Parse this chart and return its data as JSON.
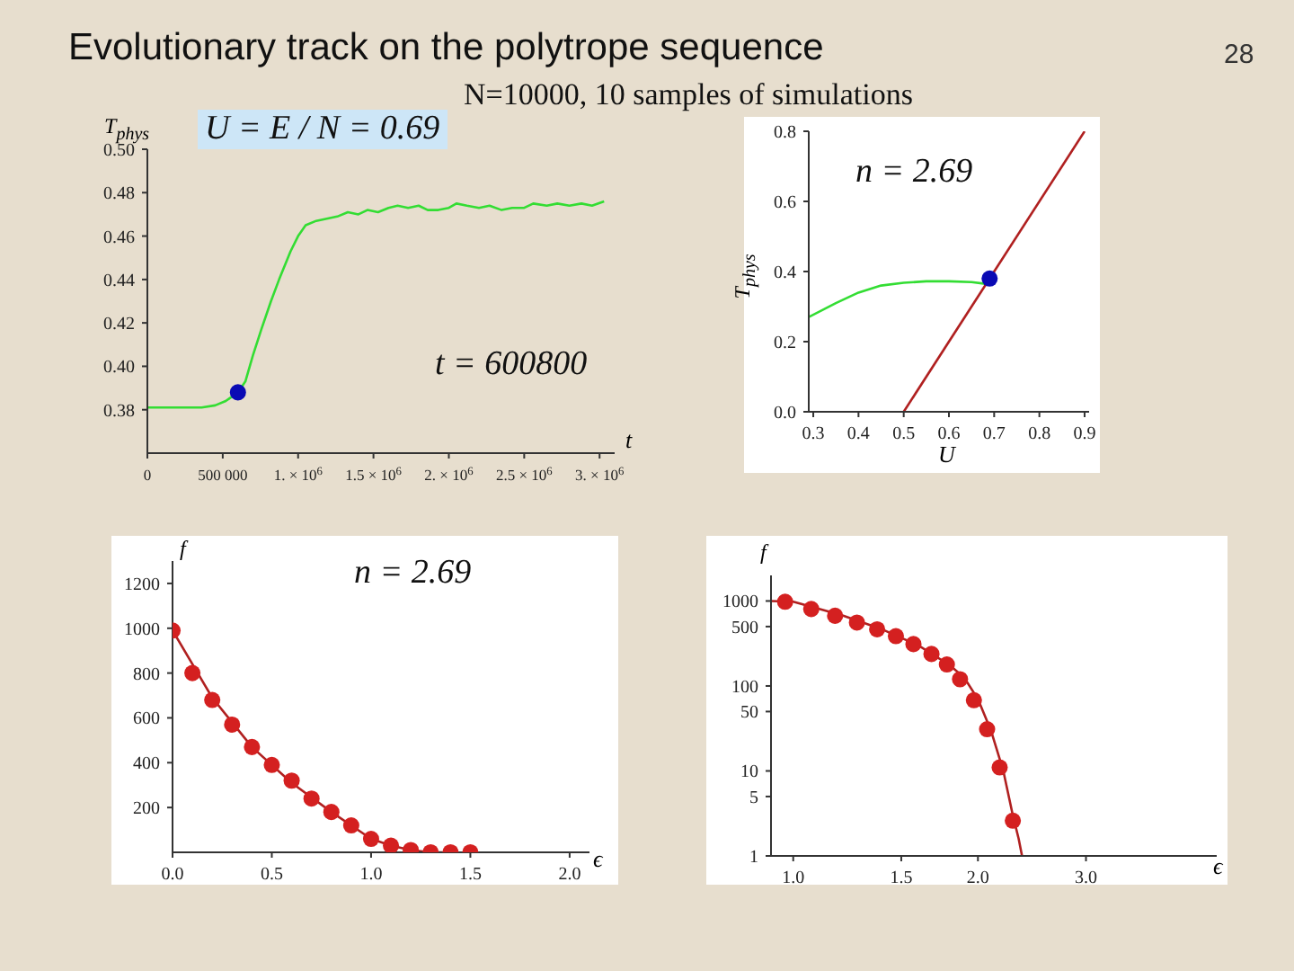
{
  "chart_data": [
    {
      "type": "line",
      "title": "Evolutionary track on the polytrope sequence",
      "subtitle": "N=10000, 10 samples of simulations",
      "xlabel": "t",
      "ylabel": "T$_{phys}$",
      "annotations": [
        "U = E / N = 0.69",
        "t = 600800",
        "28"
      ],
      "xlim": [
        0,
        3100000
      ],
      "xticks": [
        0,
        {
          "value": 500000,
          "label": "500 000"
        },
        {
          "value": 1000000,
          "label": "1. × 10$^{6}$"
        },
        {
          "value": 1500000,
          "label": "1.5 × 10$^{6}$"
        },
        {
          "value": 2000000,
          "label": "2. × 10$^{6}$"
        },
        {
          "value": 2500000,
          "label": "2.5 × 10$^{6}$"
        },
        {
          "value": 3000000,
          "label": "3. × 10$^{6}$"
        }
      ],
      "ylim": [
        0.36,
        0.5
      ],
      "yticks": [
        0.38,
        {
          "value": 0.4,
          "label": "0.40"
        },
        0.42,
        0.44,
        0.46,
        0.48,
        {
          "value": 0.5,
          "label": "0.50"
        }
      ],
      "series": [
        {
          "color": "#33dd33",
          "marker": "none",
          "x": [
            0,
            200000,
            360000,
            450000,
            520000,
            600800,
            650000,
            700000,
            756000,
            820000,
            874000,
            950000,
            1000000,
            1050000,
            1120000,
            1190000,
            1260000,
            1330000,
            1400000,
            1460000,
            1530000,
            1600000,
            1660000,
            1730000,
            1800000,
            1860000,
            1930000,
            2000000,
            2050000,
            2120000,
            2200000,
            2270000,
            2350000,
            2420000,
            2500000,
            2560000,
            2650000,
            2720000,
            2800000,
            2880000,
            2950000,
            3030000
          ],
          "values": [
            0.381,
            0.381,
            0.381,
            0.382,
            0.384,
            0.388,
            0.393,
            0.405,
            0.417,
            0.43,
            0.44,
            0.453,
            0.46,
            0.465,
            0.467,
            0.468,
            0.469,
            0.471,
            0.47,
            0.472,
            0.471,
            0.473,
            0.474,
            0.473,
            0.474,
            0.472,
            0.472,
            0.473,
            0.475,
            0.474,
            0.473,
            0.474,
            0.472,
            0.473,
            0.473,
            0.475,
            0.474,
            0.475,
            0.474,
            0.475,
            0.474,
            0.476
          ]
        },
        {
          "type": "scatter",
          "color": "#0a0ab4",
          "marker": "circle",
          "x": [
            600800
          ],
          "values": [
            0.388
          ]
        }
      ]
    },
    {
      "type": "line",
      "xlabel": "U",
      "ylabel": "T$_{phys}$",
      "annotations": [
        "n = 2.69"
      ],
      "xlim": [
        0.29,
        0.91
      ],
      "xticks": [
        0.3,
        0.4,
        0.5,
        0.6,
        0.7,
        0.8,
        0.9
      ],
      "ylim": [
        0,
        0.8
      ],
      "yticks": [
        {
          "value": 0,
          "label": "0.0"
        },
        0.2,
        0.4,
        0.6,
        0.8
      ],
      "series": [
        {
          "color": "#33dd33",
          "marker": "none",
          "x": [
            0.29,
            0.35,
            0.4,
            0.45,
            0.5,
            0.55,
            0.6,
            0.65,
            0.68
          ],
          "values": [
            0.27,
            0.31,
            0.34,
            0.36,
            0.368,
            0.372,
            0.372,
            0.37,
            0.365
          ]
        },
        {
          "color": "#b02020",
          "marker": "none",
          "x": [
            0.5,
            0.9
          ],
          "values": [
            0,
            0.8
          ]
        },
        {
          "type": "scatter",
          "color": "#0a0ab4",
          "marker": "circle",
          "x": [
            0.69
          ],
          "values": [
            0.38
          ]
        }
      ]
    },
    {
      "type": "scatter",
      "xlabel": "ϵ",
      "ylabel": "f",
      "annotations": [
        "n = 2.69"
      ],
      "xlim": [
        0,
        2.1
      ],
      "xticks": [
        {
          "value": 0,
          "label": "0.0"
        },
        0.5,
        {
          "value": 1,
          "label": "1.0"
        },
        1.5,
        {
          "value": 2,
          "label": "2.0"
        }
      ],
      "ylim": [
        0,
        1300
      ],
      "yticks": [
        200,
        400,
        600,
        800,
        1000,
        1200
      ],
      "series": [
        {
          "color": "#d42020",
          "marker": "circle",
          "x": [
            0,
            0.1,
            0.2,
            0.3,
            0.4,
            0.5,
            0.6,
            0.7,
            0.8,
            0.9,
            1.0,
            1.1,
            1.2,
            1.3,
            1.4,
            1.5
          ],
          "values": [
            990,
            800,
            680,
            570,
            470,
            390,
            320,
            240,
            180,
            120,
            60,
            30,
            10,
            0,
            0,
            0
          ]
        },
        {
          "type": "line",
          "color": "#b02020",
          "marker": "none",
          "x": [
            0,
            0.2,
            0.4,
            0.6,
            0.8,
            1.0,
            1.1,
            1.2,
            1.3,
            1.36
          ],
          "values": [
            990,
            690,
            470,
            310,
            180,
            60,
            30,
            10,
            0,
            0
          ]
        }
      ]
    },
    {
      "type": "scatter",
      "xlabel": "ϵ",
      "ylabel": "f",
      "log": "xy",
      "xlim": [
        0.92,
        4.9
      ],
      "xticks": [
        {
          "value": 1,
          "label": "1.0"
        },
        1.5,
        {
          "value": 2,
          "label": "2.0"
        },
        {
          "value": 3,
          "label": "3.0"
        }
      ],
      "ylim": [
        1,
        2000
      ],
      "yticks": [
        1,
        5,
        10,
        50,
        100,
        500,
        1000
      ],
      "series": [
        {
          "color": "#d42020",
          "marker": "circle",
          "x": [
            0.97,
            1.07,
            1.17,
            1.27,
            1.37,
            1.47,
            1.57,
            1.68,
            1.78,
            1.87,
            1.97,
            2.07,
            2.17,
            2.28
          ],
          "values": [
            980,
            805,
            670,
            557,
            464,
            386,
            311,
            238,
            179,
            120,
            68,
            31,
            11,
            2.6
          ]
        },
        {
          "type": "line",
          "color": "#b02020",
          "marker": "none",
          "x": [
            0.92,
            1.0,
            1.2,
            1.4,
            1.6,
            1.8,
            1.9,
            2.0,
            2.1,
            2.2,
            2.28,
            2.33,
            2.36
          ],
          "values": [
            1000,
            980,
            680,
            460,
            300,
            175,
            125,
            70,
            30,
            10,
            3,
            1.6,
            1
          ]
        }
      ]
    }
  ]
}
